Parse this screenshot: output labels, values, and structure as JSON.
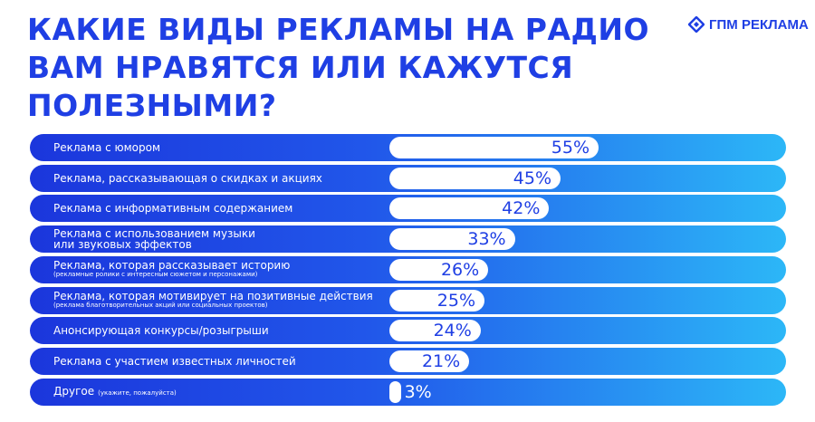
{
  "chart_data": {
    "type": "bar",
    "title": "КАКИЕ ВИДЫ РЕКЛАМЫ НА РАДИО\nВАМ НРАВЯТСЯ ИЛИ КАЖУТСЯ\nПОЛЕЗНЫМИ?",
    "logo": "ГПМ РЕКЛАМА",
    "categories": [
      "Реклама с юмором",
      "Реклама, рассказывающая о скидках и акциях",
      "Реклама с информативным содержанием",
      "Реклама с использованием музыки\nили звуковых эффектов",
      "Реклама, которая рассказывает историю",
      "Реклама, которая мотивирует на позитивные действия",
      "Анонсирующая конкурсы/розыгрыши",
      "Реклама с участием известных личностей",
      "Другое"
    ],
    "category_notes": [
      null,
      null,
      null,
      null,
      "(рекламные ролики с интересным сюжетом и персонажами)",
      "(реклама благотворительных акций или социальных проектов)",
      null,
      null,
      "(укажите, пожалуйста)"
    ],
    "values": [
      55,
      45,
      42,
      33,
      26,
      25,
      24,
      21,
      3
    ],
    "value_labels": [
      "55%",
      "45%",
      "42%",
      "33%",
      "26%",
      "25%",
      "24%",
      "21%",
      "3%"
    ],
    "xlim": [
      0,
      100
    ],
    "color": "#ffffff"
  }
}
